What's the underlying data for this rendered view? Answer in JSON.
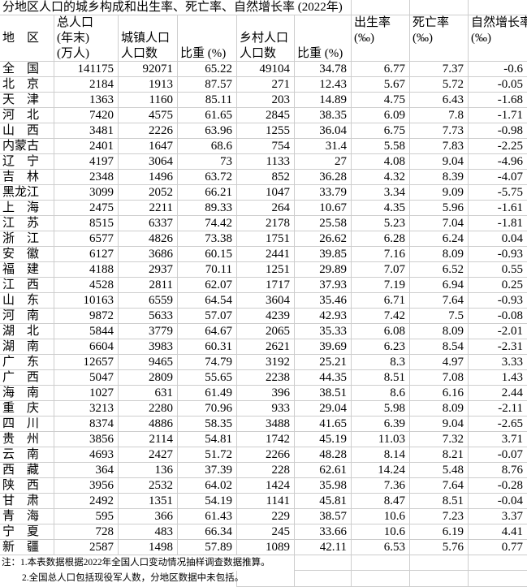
{
  "title": "分地区人口的城乡构成和出生率、死亡率、自然增长率 (2022年)",
  "colors": {
    "gridline": "#cdcdcd",
    "background": "#ffffff",
    "text": "#000000"
  },
  "header": {
    "columns": [
      {
        "lines": [
          "",
          "地　区",
          ""
        ]
      },
      {
        "lines": [
          "总人口",
          "(年末)",
          "(万人)"
        ]
      },
      {
        "lines": [
          "",
          "城镇人口",
          "人口数"
        ]
      },
      {
        "lines": [
          "",
          "",
          "比重 (%)"
        ]
      },
      {
        "lines": [
          "",
          "乡村人口",
          "人口数"
        ]
      },
      {
        "lines": [
          "",
          "",
          "比重 (%)"
        ]
      },
      {
        "lines": [
          "出生率",
          "(‰)",
          ""
        ]
      },
      {
        "lines": [
          "死亡率",
          "(‰)",
          ""
        ]
      },
      {
        "lines": [
          "自然增长率",
          "(‰)",
          ""
        ]
      }
    ]
  },
  "table": {
    "rows": [
      {
        "region": "全　国",
        "values": [
          "141175",
          "92071",
          "65.22",
          "49104",
          "34.78",
          "6.77",
          "7.37",
          "-0.6"
        ]
      },
      {
        "region": "北　京",
        "values": [
          "2184",
          "1913",
          "87.57",
          "271",
          "12.43",
          "5.67",
          "5.72",
          "-0.05"
        ]
      },
      {
        "region": "天　津",
        "values": [
          "1363",
          "1160",
          "85.11",
          "203",
          "14.89",
          "4.75",
          "6.43",
          "-1.68"
        ]
      },
      {
        "region": "河　北",
        "values": [
          "7420",
          "4575",
          "61.65",
          "2845",
          "38.35",
          "6.09",
          "7.8",
          "-1.71"
        ]
      },
      {
        "region": "山　西",
        "values": [
          "3481",
          "2226",
          "63.96",
          "1255",
          "36.04",
          "6.75",
          "7.73",
          "-0.98"
        ]
      },
      {
        "region": "内蒙古",
        "values": [
          "2401",
          "1647",
          "68.6",
          "754",
          "31.4",
          "5.58",
          "7.83",
          "-2.25"
        ]
      },
      {
        "region": "辽　宁",
        "values": [
          "4197",
          "3064",
          "73",
          "1133",
          "27",
          "4.08",
          "9.04",
          "-4.96"
        ]
      },
      {
        "region": "吉　林",
        "values": [
          "2348",
          "1496",
          "63.72",
          "852",
          "36.28",
          "4.32",
          "8.39",
          "-4.07"
        ]
      },
      {
        "region": "黑龙江",
        "values": [
          "3099",
          "2052",
          "66.21",
          "1047",
          "33.79",
          "3.34",
          "9.09",
          "-5.75"
        ]
      },
      {
        "region": "上　海",
        "values": [
          "2475",
          "2211",
          "89.33",
          "264",
          "10.67",
          "4.35",
          "5.96",
          "-1.61"
        ]
      },
      {
        "region": "江　苏",
        "values": [
          "8515",
          "6337",
          "74.42",
          "2178",
          "25.58",
          "5.23",
          "7.04",
          "-1.81"
        ]
      },
      {
        "region": "浙　江",
        "values": [
          "6577",
          "4826",
          "73.38",
          "1751",
          "26.62",
          "6.28",
          "6.24",
          "0.04"
        ]
      },
      {
        "region": "安　徽",
        "values": [
          "6127",
          "3686",
          "60.15",
          "2441",
          "39.85",
          "7.16",
          "8.09",
          "-0.93"
        ]
      },
      {
        "region": "福　建",
        "values": [
          "4188",
          "2937",
          "70.11",
          "1251",
          "29.89",
          "7.07",
          "6.52",
          "0.55"
        ]
      },
      {
        "region": "江　西",
        "values": [
          "4528",
          "2811",
          "62.07",
          "1717",
          "37.93",
          "7.19",
          "6.94",
          "0.25"
        ]
      },
      {
        "region": "山　东",
        "values": [
          "10163",
          "6559",
          "64.54",
          "3604",
          "35.46",
          "6.71",
          "7.64",
          "-0.93"
        ]
      },
      {
        "region": "河　南",
        "values": [
          "9872",
          "5633",
          "57.07",
          "4239",
          "42.93",
          "7.42",
          "7.5",
          "-0.08"
        ]
      },
      {
        "region": "湖　北",
        "values": [
          "5844",
          "3779",
          "64.67",
          "2065",
          "35.33",
          "6.08",
          "8.09",
          "-2.01"
        ]
      },
      {
        "region": "湖　南",
        "values": [
          "6604",
          "3983",
          "60.31",
          "2621",
          "39.69",
          "6.23",
          "8.54",
          "-2.31"
        ]
      },
      {
        "region": "广　东",
        "values": [
          "12657",
          "9465",
          "74.79",
          "3192",
          "25.21",
          "8.3",
          "4.97",
          "3.33"
        ]
      },
      {
        "region": "广　西",
        "values": [
          "5047",
          "2809",
          "55.65",
          "2238",
          "44.35",
          "8.51",
          "7.08",
          "1.43"
        ]
      },
      {
        "region": "海　南",
        "values": [
          "1027",
          "631",
          "61.49",
          "396",
          "38.51",
          "8.6",
          "6.16",
          "2.44"
        ]
      },
      {
        "region": "重　庆",
        "values": [
          "3213",
          "2280",
          "70.96",
          "933",
          "29.04",
          "5.98",
          "8.09",
          "-2.11"
        ]
      },
      {
        "region": "四　川",
        "values": [
          "8374",
          "4886",
          "58.35",
          "3488",
          "41.65",
          "6.39",
          "9.04",
          "-2.65"
        ]
      },
      {
        "region": "贵　州",
        "values": [
          "3856",
          "2114",
          "54.81",
          "1742",
          "45.19",
          "11.03",
          "7.32",
          "3.71"
        ]
      },
      {
        "region": "云　南",
        "values": [
          "4693",
          "2427",
          "51.72",
          "2266",
          "48.28",
          "8.14",
          "8.21",
          "-0.07"
        ]
      },
      {
        "region": "西　藏",
        "values": [
          "364",
          "136",
          "37.39",
          "228",
          "62.61",
          "14.24",
          "5.48",
          "8.76"
        ]
      },
      {
        "region": "陕　西",
        "values": [
          "3956",
          "2532",
          "64.02",
          "1424",
          "35.98",
          "7.36",
          "7.64",
          "-0.28"
        ]
      },
      {
        "region": "甘　肃",
        "values": [
          "2492",
          "1351",
          "54.19",
          "1141",
          "45.81",
          "8.47",
          "8.51",
          "-0.04"
        ]
      },
      {
        "region": "青　海",
        "values": [
          "595",
          "366",
          "61.43",
          "229",
          "38.57",
          "10.6",
          "7.23",
          "3.37"
        ]
      },
      {
        "region": "宁　夏",
        "values": [
          "728",
          "483",
          "66.34",
          "245",
          "33.66",
          "10.6",
          "6.19",
          "4.41"
        ]
      },
      {
        "region": "新　疆",
        "values": [
          "2587",
          "1498",
          "57.89",
          "1089",
          "42.11",
          "6.53",
          "5.76",
          "0.77"
        ]
      }
    ]
  },
  "notes": [
    "注：1.本表数据根据2022年全国人口变动情况抽样调查数据推算。",
    "2.全国总人口包括现役军人数，分地区数据中未包括。"
  ]
}
